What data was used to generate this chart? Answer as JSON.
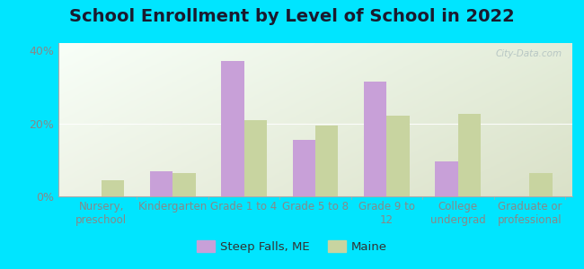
{
  "title": "School Enrollment by Level of School in 2022",
  "categories": [
    "Nursery,\npreschool",
    "Kindergarten",
    "Grade 1 to 4",
    "Grade 5 to 8",
    "Grade 9 to\n12",
    "College\nundergrad",
    "Graduate or\nprofessional"
  ],
  "steep_falls": [
    0.0,
    7.0,
    37.0,
    15.5,
    31.5,
    9.5,
    0.0
  ],
  "maine": [
    4.5,
    6.5,
    21.0,
    19.5,
    22.0,
    22.5,
    6.5
  ],
  "steep_falls_color": "#c8a0d8",
  "maine_color": "#c8d4a0",
  "background_outer": "#00e5ff",
  "ylim": [
    0,
    42
  ],
  "yticks": [
    0,
    20,
    40
  ],
  "ytick_labels": [
    "0%",
    "20%",
    "40%"
  ],
  "legend_steep_falls": "Steep Falls, ME",
  "legend_maine": "Maine",
  "watermark": "City-Data.com",
  "title_fontsize": 14,
  "axis_label_fontsize": 8.5,
  "tick_fontsize": 9
}
